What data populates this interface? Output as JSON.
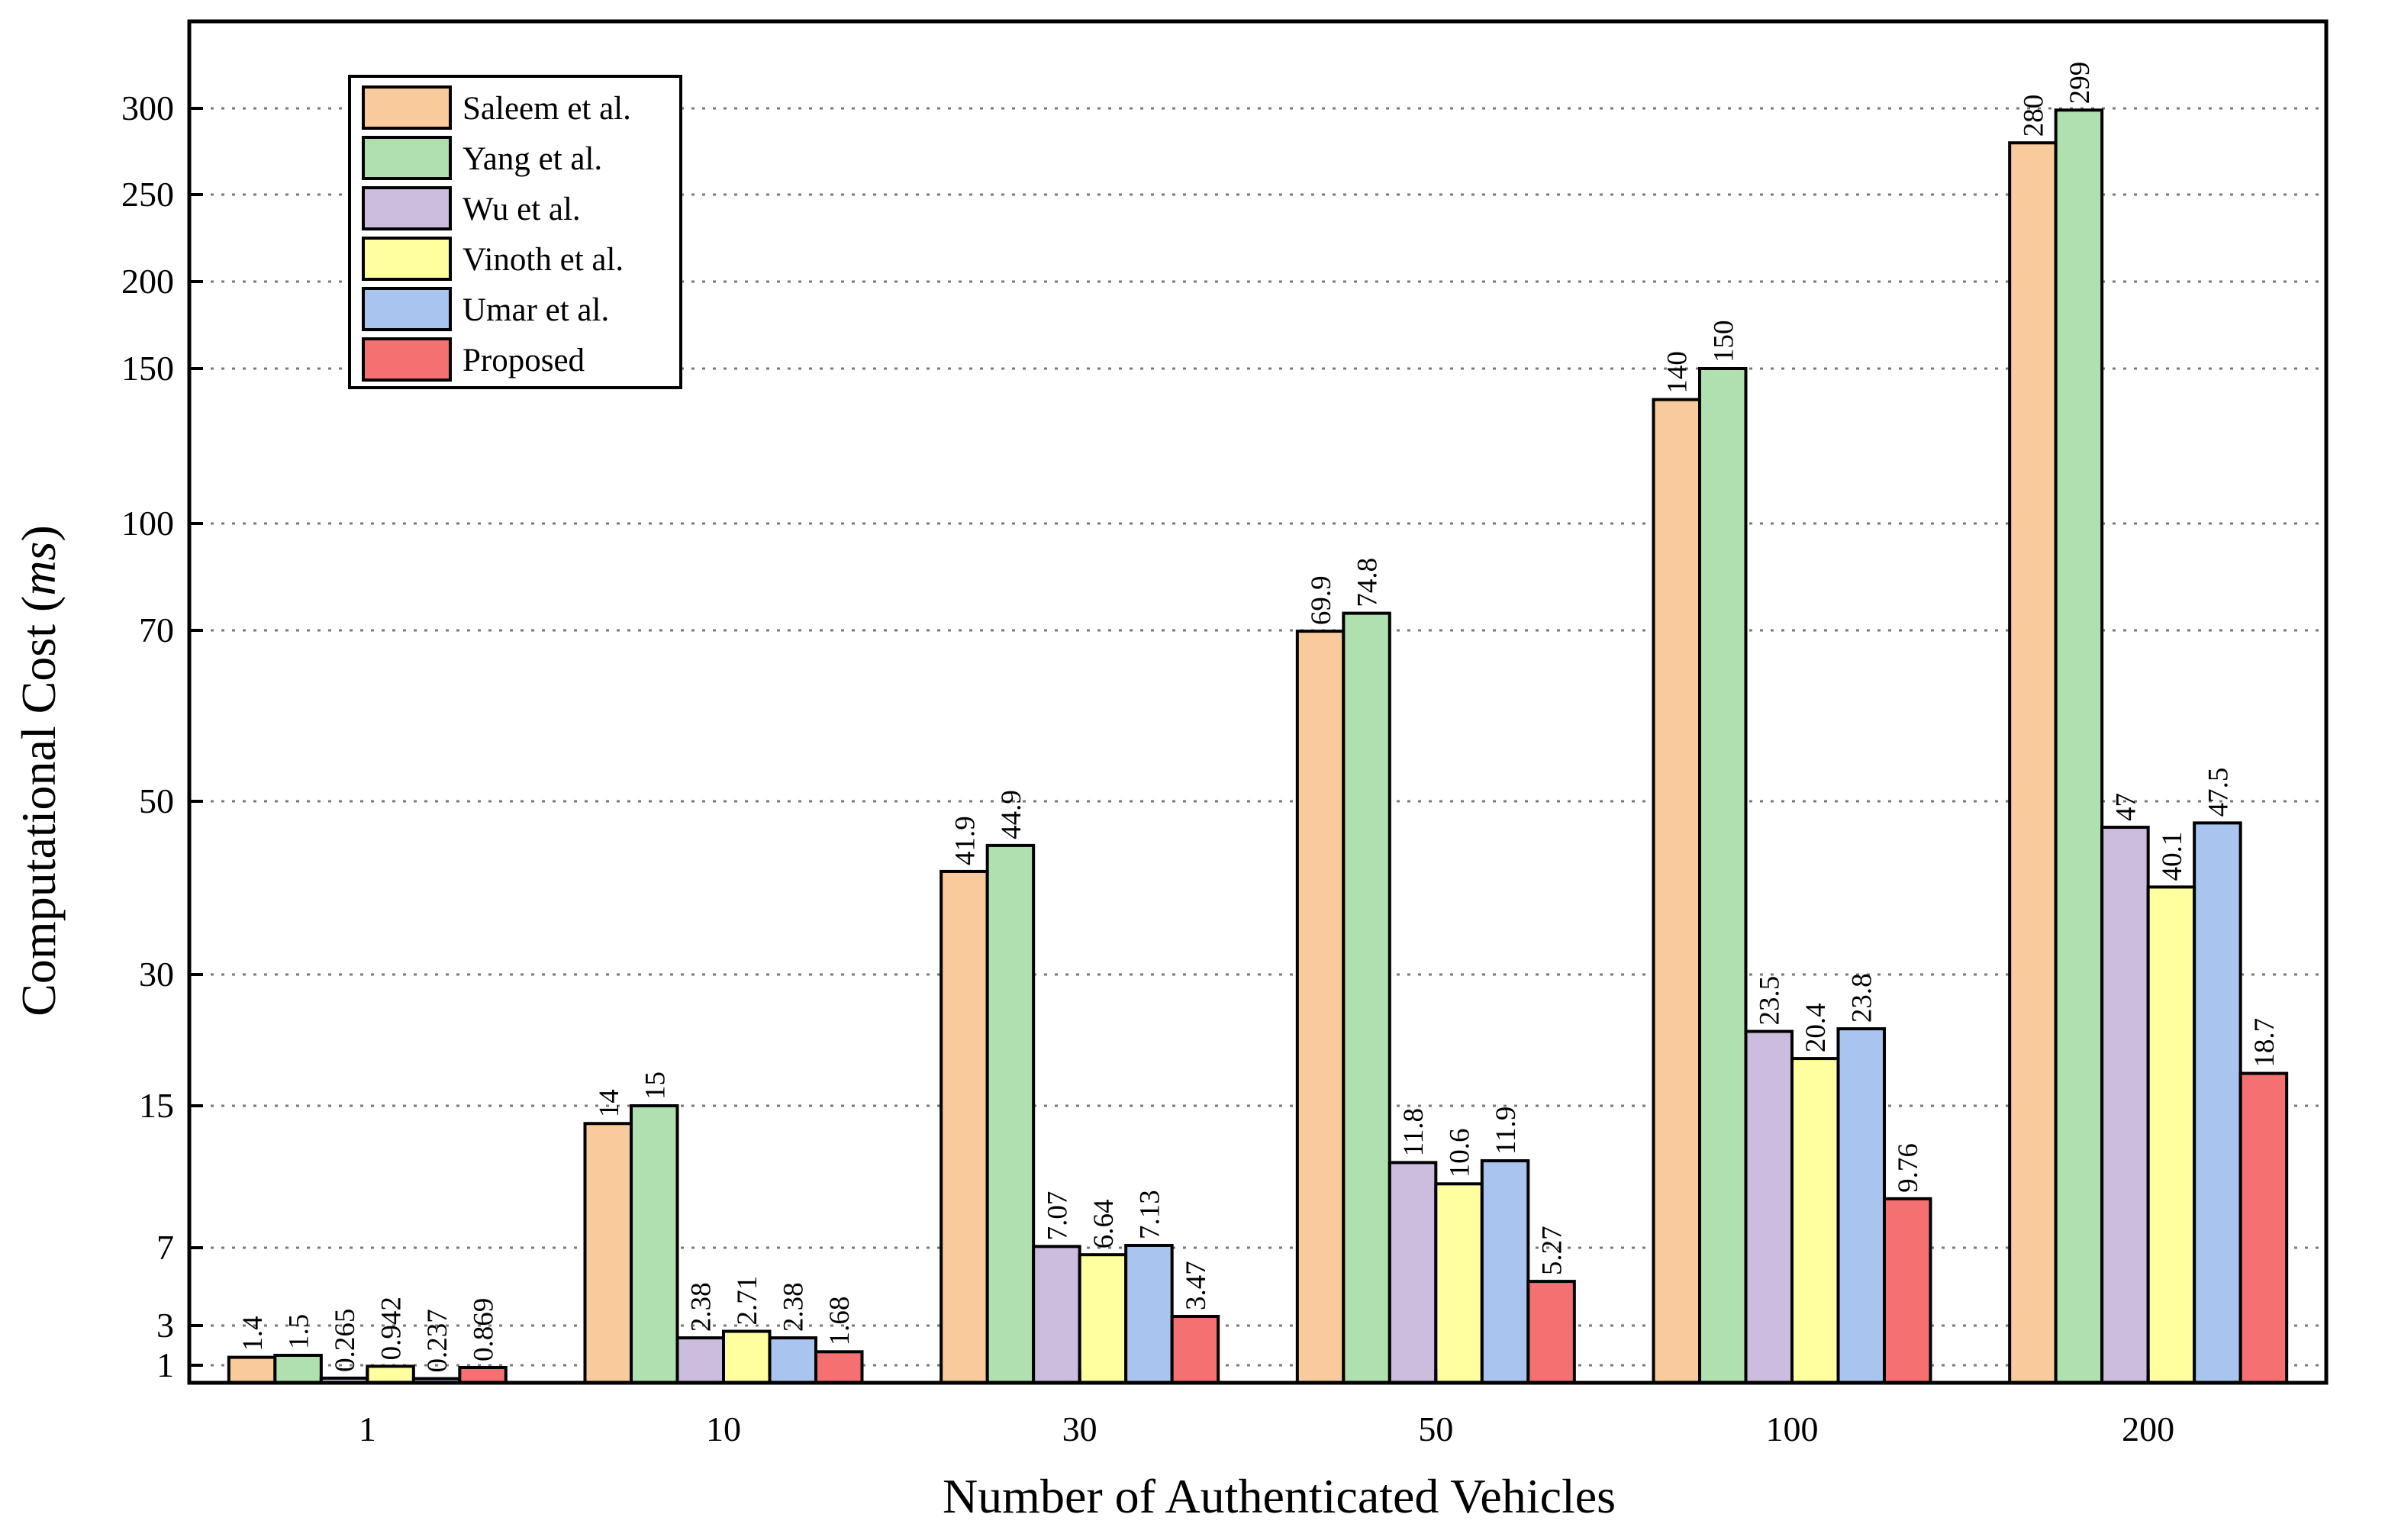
{
  "chart_data": {
    "type": "bar",
    "title": "",
    "xlabel": "Number of Authenticated Vehicles",
    "ylabel_prefix": "Computational Cost (",
    "ylabel_unit": "ms",
    "ylabel_suffix": ")",
    "categories": [
      "1",
      "10",
      "30",
      "50",
      "100",
      "200"
    ],
    "y_ticks": [
      1,
      3,
      7,
      15,
      30,
      50,
      70,
      100,
      150,
      200,
      250,
      300
    ],
    "ylim": [
      0,
      335
    ],
    "grid": true,
    "legend_position": "top-left",
    "series": [
      {
        "name": "Saleem et al.",
        "color": "#F9CB9C",
        "values": [
          1.4,
          14,
          41.9,
          69.9,
          140,
          280
        ],
        "labels": [
          "1.4",
          "14",
          "41.9",
          "69.9",
          "140",
          "280"
        ]
      },
      {
        "name": "Yang et al.",
        "color": "#B0DFB0",
        "values": [
          1.5,
          15,
          44.9,
          74.8,
          150,
          299
        ],
        "labels": [
          "1.5",
          "15",
          "44.9",
          "74.8",
          "150",
          "299"
        ]
      },
      {
        "name": "Wu et al.",
        "color": "#CCBCDD",
        "values": [
          0.265,
          2.38,
          7.07,
          11.8,
          23.5,
          47
        ],
        "labels": [
          "0.265",
          "2.38",
          "7.07",
          "11.8",
          "23.5",
          "47"
        ]
      },
      {
        "name": "Vinoth et al.",
        "color": "#FFFFA0",
        "values": [
          0.942,
          2.71,
          6.64,
          10.6,
          20.4,
          40.1
        ],
        "labels": [
          "0.942",
          "2.71",
          "6.64",
          "10.6",
          "20.4",
          "40.1"
        ]
      },
      {
        "name": "Umar et al.",
        "color": "#A9C4EE",
        "values": [
          0.237,
          2.38,
          7.13,
          11.9,
          23.8,
          47.5
        ],
        "labels": [
          "0.237",
          "2.38",
          "7.13",
          "11.9",
          "23.8",
          "47.5"
        ]
      },
      {
        "name": "Proposed",
        "color": "#F57070",
        "values": [
          0.869,
          1.68,
          3.47,
          5.27,
          9.76,
          18.7
        ],
        "labels": [
          "0.869",
          "1.68",
          "3.47",
          "5.27",
          "9.76",
          "18.7"
        ]
      }
    ]
  }
}
